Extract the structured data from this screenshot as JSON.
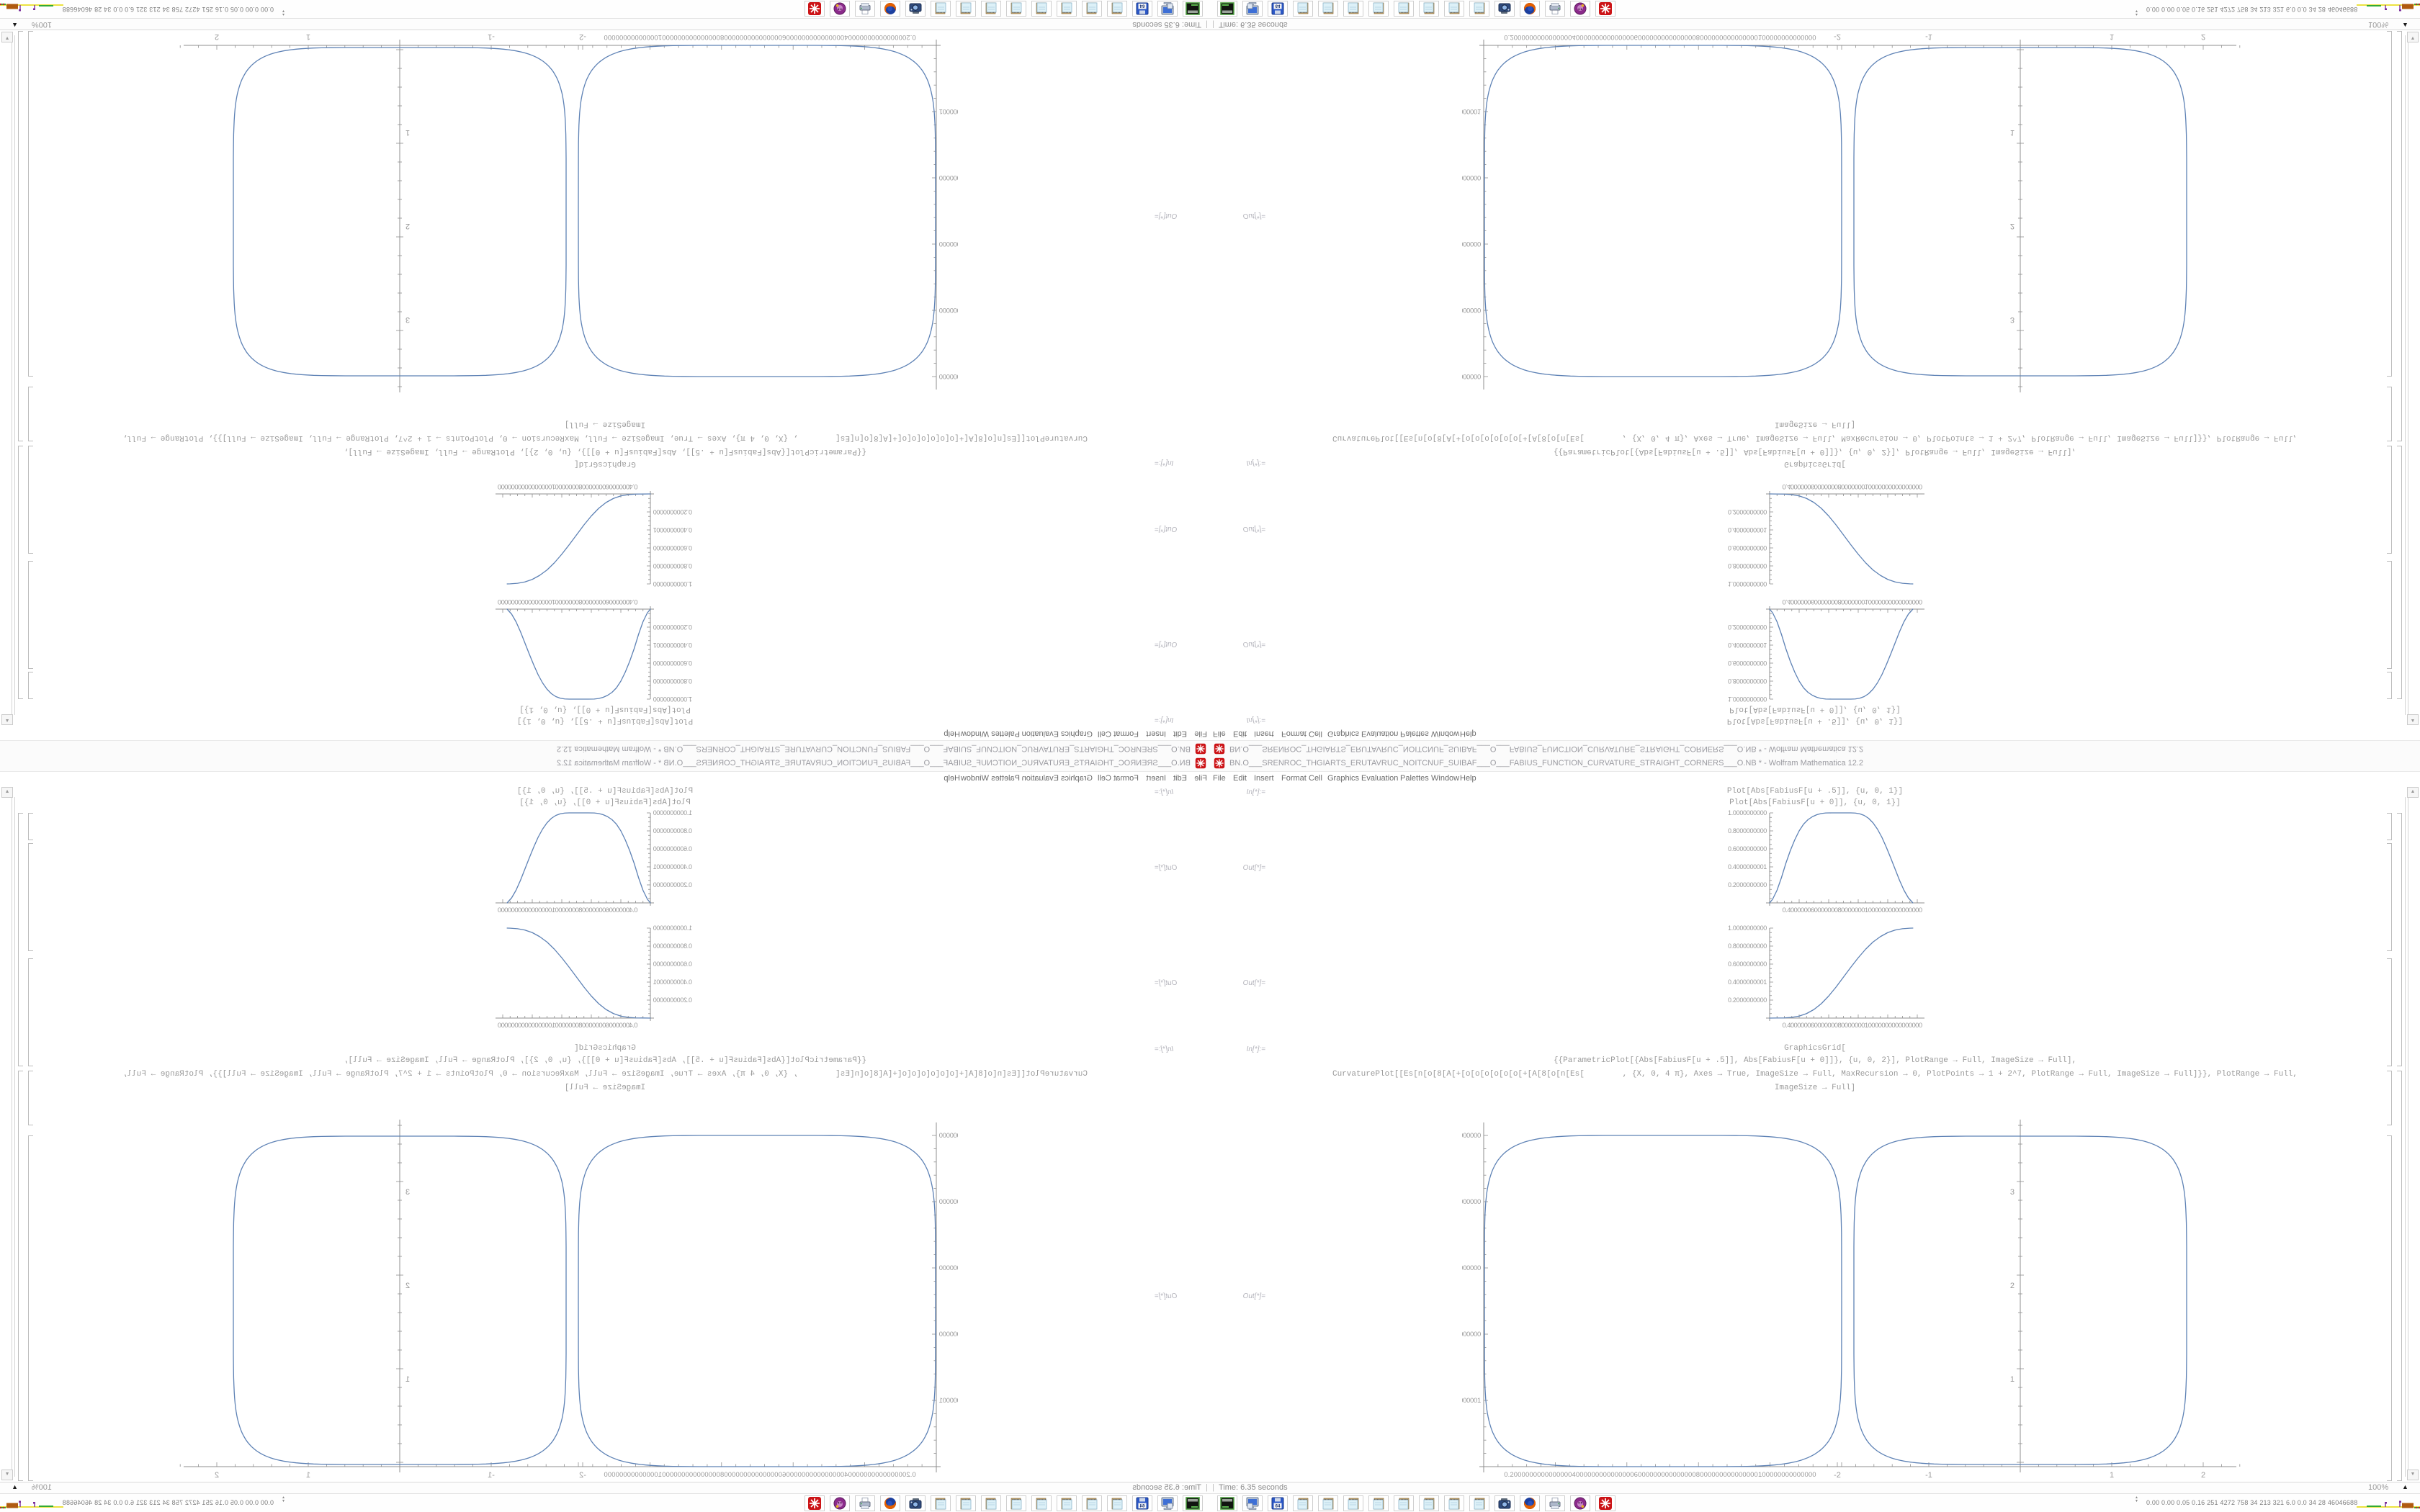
{
  "window": {
    "title": "BN.O___SRENROC_THGIARTS_ERUTAVRUC_NOITCNUF_SUIBAF___O___FABIUS_FUNCTION_CURVATURE_STRAIGHT_CORNERS___O.NB * - Wolfram Mathematica 12.2",
    "app_icon": "mathematica-red-gear",
    "menu": [
      "File",
      "Edit",
      "Insert",
      "Format",
      "Cell",
      "Graphics",
      "Evaluation",
      "Palettes",
      "Window",
      "Help"
    ]
  },
  "notebook": {
    "cells": [
      {
        "label": "In[*]:=",
        "lines": [
          "Plot[Abs[FabiusF[u + .5]], {u, 0, 1}]",
          "Plot[Abs[FabiusF[u + 0]], {u, 0, 1}]"
        ]
      },
      {
        "label": "Out[*]=",
        "plot": "plotA"
      },
      {
        "label": "Out[*]=",
        "plot": "plotB"
      },
      {
        "label": "In[*]:=",
        "lines": [
          "GraphicsGrid[",
          "{{ParametricPlot[{Abs[FabiusF[u + .5]], Abs[FabiusF[u + 0]]}, {u, 0, 2}], PlotRange → Full, ImageSize → Full],",
          "CurvaturePlot[[Es[n[o[8[A[+[o[o[o[o[o[o[+[A[8[o[n[Es[        , {X, 0, 4 π}, Axes → True, ImageSize → Full, MaxRecursion → 0, PlotPoints → 1 + 2^7, PlotRange → Full, ImageSize → Full]}}, PlotRange → Full,",
          "ImageSize → Full]"
        ]
      },
      {
        "label": "Out[*]=",
        "plot": "grid"
      }
    ]
  },
  "status_bar": {
    "separator": "|",
    "time_text": "Time: 6.35 seconds",
    "zoom": "100%",
    "grip_icon": "black-triangle"
  },
  "taskbar": {
    "icons": [
      "terminal",
      "file-manager",
      "floppy-64",
      "notepad",
      "notepad",
      "notepad",
      "notepad",
      "notepad",
      "notepad",
      "notepad",
      "notepad",
      "screenshot-tool",
      "firefox",
      "printer",
      "media-app",
      "mathematica"
    ],
    "monitor_arrows": "▲▼",
    "monitor_text": "0.00 0.00 0.05 0.16  251 4272 758  34  213 321  6.0  0.0  34  28 46046688",
    "chart_colors": {
      "line": "#e6d800",
      "green": "#33aa33",
      "purple": "#7b2d9b",
      "orange": "#b05a10",
      "red": "#cc2222"
    }
  },
  "accent_colors": {
    "plot_line": "#5e82b5",
    "mathematica_red": "#cc1417",
    "code_gray": "#9b9b9b"
  },
  "chart_data": [
    {
      "id": "plotA",
      "type": "line",
      "title": "Abs[FabiusF[u + .5]]",
      "x_range": [
        0,
        1
      ],
      "y_range": [
        0,
        1
      ],
      "grid": false,
      "legend": "none",
      "points": [
        [
          0,
          0
        ],
        [
          0.02,
          0.04
        ],
        [
          0.05,
          0.14
        ],
        [
          0.08,
          0.28
        ],
        [
          0.11,
          0.44
        ],
        [
          0.14,
          0.58
        ],
        [
          0.17,
          0.7
        ],
        [
          0.2,
          0.8
        ],
        [
          0.23,
          0.875
        ],
        [
          0.26,
          0.925
        ],
        [
          0.29,
          0.958
        ],
        [
          0.32,
          0.98
        ],
        [
          0.35,
          0.993
        ],
        [
          0.38,
          0.999
        ],
        [
          0.42,
          1
        ],
        [
          0.55,
          1
        ],
        [
          0.58,
          0.998
        ],
        [
          0.61,
          0.99
        ],
        [
          0.64,
          0.972
        ],
        [
          0.67,
          0.94
        ],
        [
          0.7,
          0.89
        ],
        [
          0.73,
          0.82
        ],
        [
          0.76,
          0.73
        ],
        [
          0.79,
          0.62
        ],
        [
          0.82,
          0.5
        ],
        [
          0.85,
          0.375
        ],
        [
          0.88,
          0.25
        ],
        [
          0.91,
          0.14
        ],
        [
          0.94,
          0.055
        ],
        [
          0.965,
          0.01
        ],
        [
          0.97,
          0
        ]
      ],
      "ytick_labels": [
        "1.0000000000",
        "0.8000000000",
        "0.6000000000",
        "0.4000000001",
        "0.2000000000"
      ],
      "xtick_garble": "0.4000000600000008000000010000000000000000"
    },
    {
      "id": "plotB",
      "type": "line",
      "title": "Abs[FabiusF[u + 0]]",
      "x_range": [
        0,
        1
      ],
      "y_range": [
        0,
        1
      ],
      "grid": false,
      "legend": "none",
      "points": [
        [
          0,
          0
        ],
        [
          0.1,
          0.002
        ],
        [
          0.15,
          0.008
        ],
        [
          0.2,
          0.022
        ],
        [
          0.25,
          0.05
        ],
        [
          0.3,
          0.095
        ],
        [
          0.35,
          0.16
        ],
        [
          0.4,
          0.245
        ],
        [
          0.45,
          0.345
        ],
        [
          0.5,
          0.455
        ],
        [
          0.55,
          0.565
        ],
        [
          0.6,
          0.67
        ],
        [
          0.65,
          0.765
        ],
        [
          0.7,
          0.845
        ],
        [
          0.75,
          0.905
        ],
        [
          0.8,
          0.95
        ],
        [
          0.85,
          0.978
        ],
        [
          0.9,
          0.993
        ],
        [
          0.95,
          0.999
        ],
        [
          0.97,
          1
        ]
      ],
      "ytick_labels": [
        "1.0000000000",
        "0.8000000000",
        "0.6000000000",
        "0.4000000001",
        "0.2000000000"
      ],
      "xtick_garble": "0.4000000600000008000000010000000000000000"
    },
    {
      "id": "squircle_left",
      "type": "line",
      "title": "ParametricPlot {Abs[FabiusF[u+.5]], Abs[FabiusF[u+0]]}",
      "shape": "superellipse",
      "exponent": 6,
      "x_range": [
        0,
        1.05
      ],
      "y_range": [
        0,
        1.05
      ],
      "ytick_labels": [
        "1.000000000",
        "0.800000000",
        "0.600000000",
        "0.400000000",
        "0.200000001"
      ],
      "xtick_garble": "0.2000000000000000400000000000000060000000000000008000000000000000100000000000000"
    },
    {
      "id": "squircle_right",
      "type": "line",
      "title": "CurvaturePlot output",
      "shape": "superellipse",
      "exponent": 6,
      "x_range": [
        -2.4,
        2.4
      ],
      "y_range": [
        0,
        3.7
      ],
      "extent": {
        "x": [
          -1.8,
          1.8
        ],
        "y": [
          0,
          3.6
        ]
      },
      "ytick_labels": [
        "3",
        "2",
        "1"
      ],
      "xtick_labels": [
        "-2",
        "-1",
        "1",
        "2"
      ]
    }
  ]
}
